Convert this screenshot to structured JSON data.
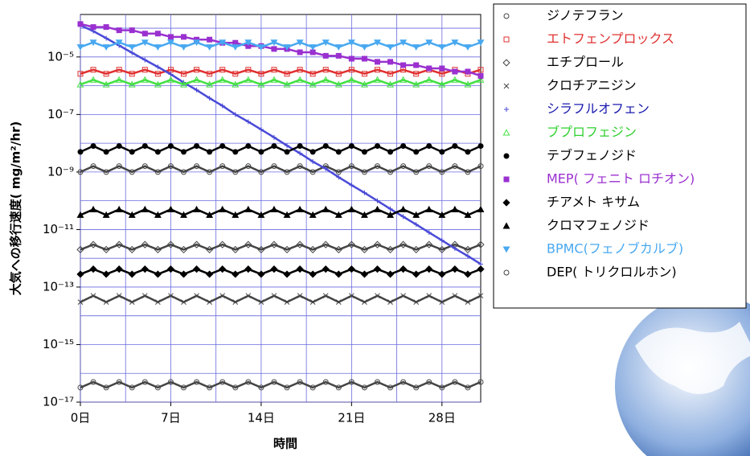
{
  "chart_data": {
    "type": "line",
    "xlabel": "時間",
    "ylabel": "大気への移行速度( mg/m²/hr)",
    "log_y": true,
    "grid": true,
    "grid_color": "#6a6adf",
    "legend_position": "right",
    "x": [
      0,
      1,
      2,
      3,
      4,
      5,
      6,
      7,
      8,
      9,
      10,
      11,
      12,
      13,
      14,
      15,
      16,
      17,
      18,
      19,
      20,
      21,
      22,
      23,
      24,
      25,
      26,
      27,
      28,
      29,
      30,
      31
    ],
    "xlim": [
      0,
      31
    ],
    "xticks": [
      {
        "value": 0,
        "label": "0日"
      },
      {
        "value": 7,
        "label": "7日"
      },
      {
        "value": 14,
        "label": "14日"
      },
      {
        "value": 21,
        "label": "21日"
      },
      {
        "value": 28,
        "label": "28日"
      }
    ],
    "minor_xticks": [
      3.5,
      10.5,
      17.5,
      24.5
    ],
    "ylim": [
      1e-17,
      0.0003
    ],
    "yticks": [
      {
        "value": 1e-05,
        "label": "10⁻⁵"
      },
      {
        "value": 1e-07,
        "label": "10⁻⁷"
      },
      {
        "value": 1e-09,
        "label": "10⁻⁹"
      },
      {
        "value": 1e-11,
        "label": "10⁻¹¹"
      },
      {
        "value": 1e-13,
        "label": "10⁻¹³"
      },
      {
        "value": 1e-15,
        "label": "10⁻¹⁵"
      },
      {
        "value": 1e-17,
        "label": "10⁻¹⁷"
      }
    ],
    "minor_yticks": [
      0.0001,
      1e-06,
      1e-08,
      1e-10,
      1e-12,
      1e-14,
      1e-16
    ],
    "series": [
      {
        "name": "ジノテフラン",
        "color": "#444444",
        "label_color": "#000000",
        "marker": "circle-open",
        "values": [
          1e-09,
          1.6e-09,
          1e-09,
          1.6e-09,
          1e-09,
          1.6e-09,
          1e-09,
          1.6e-09,
          1e-09,
          1.6e-09,
          1e-09,
          1.6e-09,
          1e-09,
          1.6e-09,
          1e-09,
          1.6e-09,
          1e-09,
          1.6e-09,
          1e-09,
          1.6e-09,
          1e-09,
          1.6e-09,
          1e-09,
          1.6e-09,
          1e-09,
          1.6e-09,
          1e-09,
          1.6e-09,
          1e-09,
          1.6e-09,
          1e-09,
          1.6e-09
        ]
      },
      {
        "name": "エトフェンプロックス",
        "color": "#e03030",
        "label_color": "#e03030",
        "marker": "square-open",
        "values": [
          2.6e-06,
          3.6e-06,
          2.6e-06,
          3.6e-06,
          2.6e-06,
          3.6e-06,
          2.6e-06,
          3.6e-06,
          2.6e-06,
          3.6e-06,
          2.6e-06,
          3.6e-06,
          2.6e-06,
          3.6e-06,
          2.6e-06,
          3.6e-06,
          2.6e-06,
          3.6e-06,
          2.6e-06,
          3.6e-06,
          2.6e-06,
          3.6e-06,
          2.6e-06,
          3.6e-06,
          2.6e-06,
          3.6e-06,
          2.6e-06,
          3.6e-06,
          2.6e-06,
          3.6e-06,
          2.6e-06,
          3.6e-06
        ]
      },
      {
        "name": "エチプロール",
        "color": "#444444",
        "label_color": "#000000",
        "marker": "diamond-open",
        "values": [
          2e-12,
          3e-12,
          2e-12,
          3e-12,
          2e-12,
          3e-12,
          2e-12,
          3e-12,
          2e-12,
          3e-12,
          2e-12,
          3e-12,
          2e-12,
          3e-12,
          2e-12,
          3e-12,
          2e-12,
          3e-12,
          2e-12,
          3e-12,
          2e-12,
          3e-12,
          2e-12,
          3e-12,
          2e-12,
          3e-12,
          2e-12,
          3e-12,
          2e-12,
          3e-12,
          2e-12,
          3e-12
        ]
      },
      {
        "name": "クロチアニジン",
        "color": "#444444",
        "label_color": "#000000",
        "marker": "x",
        "values": [
          3e-14,
          5e-14,
          3e-14,
          5e-14,
          3e-14,
          5e-14,
          3e-14,
          5e-14,
          3e-14,
          5e-14,
          3e-14,
          5e-14,
          3e-14,
          5e-14,
          3e-14,
          5e-14,
          3e-14,
          5e-14,
          3e-14,
          5e-14,
          3e-14,
          5e-14,
          3e-14,
          5e-14,
          3e-14,
          5e-14,
          3e-14,
          5e-14,
          3e-14,
          5e-14,
          3e-14,
          5e-14
        ]
      },
      {
        "name": "シラフルオフェン",
        "color": "#4a4ad8",
        "label_color": "#1a1ab0",
        "marker": "plus",
        "values": [
          0.000126,
          7.9e-05,
          4.5e-05,
          2.5e-05,
          1.4e-05,
          7.9e-06,
          4.5e-06,
          2.5e-06,
          1.3e-06,
          7.1e-07,
          3.7e-07,
          2e-07,
          1e-07,
          5.6e-08,
          3e-08,
          1.6e-08,
          8.3e-09,
          4.5e-09,
          2.3e-09,
          1.3e-09,
          6.6e-10,
          3.5e-10,
          1.9e-10,
          1e-10,
          5.2e-11,
          2.8e-11,
          1.5e-11,
          7.9e-12,
          4.2e-12,
          2.2e-12,
          1.2e-12,
          6.3e-13
        ]
      },
      {
        "name": "ブプロフェジン",
        "color": "#44e044",
        "label_color": "#30d030",
        "marker": "triangle-open",
        "values": [
          1.1e-06,
          1.6e-06,
          1.1e-06,
          1.6e-06,
          1.1e-06,
          1.6e-06,
          1.1e-06,
          1.6e-06,
          1.1e-06,
          1.6e-06,
          1.1e-06,
          1.6e-06,
          1.1e-06,
          1.6e-06,
          1.1e-06,
          1.6e-06,
          1.1e-06,
          1.6e-06,
          1.1e-06,
          1.6e-06,
          1.1e-06,
          1.6e-06,
          1.1e-06,
          1.6e-06,
          1.1e-06,
          1.6e-06,
          1.1e-06,
          1.6e-06,
          1.1e-06,
          1.6e-06,
          1.1e-06,
          1.6e-06
        ]
      },
      {
        "name": "テブフェノジド",
        "color": "#000000",
        "label_color": "#000000",
        "marker": "circle",
        "values": [
          5e-09,
          8e-09,
          5e-09,
          8e-09,
          5e-09,
          8e-09,
          5e-09,
          8e-09,
          5e-09,
          8e-09,
          5e-09,
          8e-09,
          5e-09,
          8e-09,
          5e-09,
          8e-09,
          5e-09,
          8e-09,
          5e-09,
          8e-09,
          5e-09,
          8e-09,
          5e-09,
          8e-09,
          5e-09,
          8e-09,
          5e-09,
          8e-09,
          5e-09,
          8e-09,
          5e-09,
          8e-09
        ]
      },
      {
        "name": "MEP( フェニト ロチオン)",
        "color": "#9a30d0",
        "label_color": "#9a30d0",
        "marker": "square",
        "values": [
          0.00014,
          0.00011,
          0.00011,
          8.5e-05,
          8.5e-05,
          6.5e-05,
          6.5e-05,
          5e-05,
          5e-05,
          4e-05,
          4e-05,
          3.1e-05,
          3.1e-05,
          2.4e-05,
          2.4e-05,
          1.9e-05,
          1.9e-05,
          1.45e-05,
          1.45e-05,
          1.1e-05,
          1.1e-05,
          8.7e-06,
          8.7e-06,
          6.8e-06,
          6.8e-06,
          5.2e-06,
          5.2e-06,
          4e-06,
          4e-06,
          3.1e-06,
          3.1e-06,
          2.2e-06
        ]
      },
      {
        "name": "チアメト キサム",
        "color": "#000000",
        "label_color": "#000000",
        "marker": "diamond",
        "values": [
          2.8e-13,
          4.2e-13,
          2.8e-13,
          4.2e-13,
          2.8e-13,
          4.2e-13,
          2.8e-13,
          4.2e-13,
          2.8e-13,
          4.2e-13,
          2.8e-13,
          4.2e-13,
          2.8e-13,
          4.2e-13,
          2.8e-13,
          4.2e-13,
          2.8e-13,
          4.2e-13,
          2.8e-13,
          4.2e-13,
          2.8e-13,
          4.2e-13,
          2.8e-13,
          4.2e-13,
          2.8e-13,
          4.2e-13,
          2.8e-13,
          4.2e-13,
          2.8e-13,
          4.2e-13,
          2.8e-13,
          4.2e-13
        ]
      },
      {
        "name": "クロマフェノジド",
        "color": "#000000",
        "label_color": "#000000",
        "marker": "triangle",
        "values": [
          3.2e-11,
          5e-11,
          3.2e-11,
          5e-11,
          3.2e-11,
          5e-11,
          3.2e-11,
          5e-11,
          3.2e-11,
          5e-11,
          3.2e-11,
          5e-11,
          3.2e-11,
          5e-11,
          3.2e-11,
          5e-11,
          3.2e-11,
          5e-11,
          3.2e-11,
          5e-11,
          3.2e-11,
          5e-11,
          3.2e-11,
          5e-11,
          3.2e-11,
          5e-11,
          3.2e-11,
          5e-11,
          3.2e-11,
          5e-11,
          3.2e-11,
          5e-11
        ]
      },
      {
        "name": "BPMC(フェノブカルブ)",
        "color": "#48a8f0",
        "label_color": "#48a8f0",
        "marker": "triangle-down",
        "values": [
          2.2e-05,
          3.2e-05,
          2.2e-05,
          3.2e-05,
          2.2e-05,
          3.2e-05,
          2.2e-05,
          3.2e-05,
          2.2e-05,
          3.2e-05,
          2.2e-05,
          3.2e-05,
          2.2e-05,
          3.2e-05,
          2.2e-05,
          3.2e-05,
          2.2e-05,
          3.2e-05,
          2.2e-05,
          3.2e-05,
          2.2e-05,
          3.2e-05,
          2.2e-05,
          3.2e-05,
          2.2e-05,
          3.2e-05,
          2.2e-05,
          3.2e-05,
          2.2e-05,
          3.2e-05,
          2.2e-05,
          3.2e-05
        ]
      },
      {
        "name": "DEP( トリクロルホン)",
        "color": "#444444",
        "label_color": "#000000",
        "marker": "circle-open",
        "values": [
          3.2e-17,
          5e-17,
          3.2e-17,
          5e-17,
          3.2e-17,
          5e-17,
          3.2e-17,
          5e-17,
          3.2e-17,
          5e-17,
          3.2e-17,
          5e-17,
          3.2e-17,
          5e-17,
          3.2e-17,
          5e-17,
          3.2e-17,
          5e-17,
          3.2e-17,
          5e-17,
          3.2e-17,
          5e-17,
          3.2e-17,
          5e-17,
          3.2e-17,
          5e-17,
          3.2e-17,
          5e-17,
          3.2e-17,
          5e-17,
          3.2e-17,
          5e-17
        ]
      }
    ]
  }
}
